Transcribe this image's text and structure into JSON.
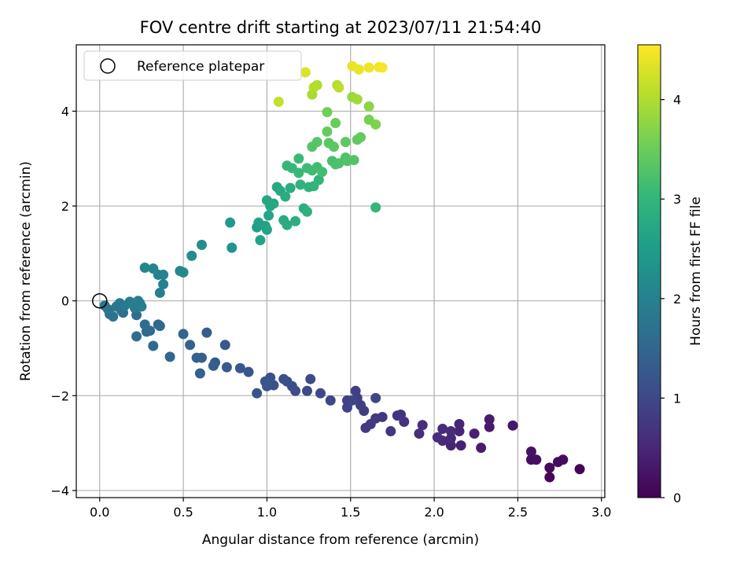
{
  "chart_data": {
    "type": "scatter",
    "title": "FOV centre drift starting at 2023/07/11 21:54:40",
    "xlabel": "Angular distance from reference (arcmin)",
    "ylabel": "Rotation from reference (arcmin)",
    "xlim": [
      -0.14,
      3.02
    ],
    "ylim": [
      -4.15,
      5.4
    ],
    "xticks": [
      0.0,
      0.5,
      1.0,
      1.5,
      2.0,
      2.5,
      3.0
    ],
    "xtick_labels": [
      "0.0",
      "0.5",
      "1.0",
      "1.5",
      "2.0",
      "2.5",
      "3.0"
    ],
    "yticks": [
      -4,
      -2,
      0,
      2,
      4
    ],
    "ytick_labels": [
      "−4",
      "−2",
      "0",
      "2",
      "4"
    ],
    "grid": true,
    "legend": {
      "placement": "upper-left",
      "entries": [
        "Reference platepar"
      ]
    },
    "reference_point": {
      "name": "Reference platepar",
      "x": 0.0,
      "y": 0.0
    },
    "colorbar": {
      "label": "Hours from first FF file",
      "colormap": "viridis",
      "range": [
        0,
        4.55
      ],
      "ticks": [
        0,
        1,
        2,
        3,
        4
      ],
      "tick_labels": [
        "0",
        "1",
        "2",
        "3",
        "4"
      ]
    },
    "points": [
      [
        2.87,
        -3.55,
        0.05
      ],
      [
        2.69,
        -3.72,
        0.08
      ],
      [
        2.69,
        -3.52,
        0.1
      ],
      [
        2.74,
        -3.4,
        0.12
      ],
      [
        2.77,
        -3.35,
        0.14
      ],
      [
        2.58,
        -3.35,
        0.18
      ],
      [
        2.61,
        -3.35,
        0.2
      ],
      [
        2.58,
        -3.18,
        0.22
      ],
      [
        2.47,
        -2.63,
        0.3
      ],
      [
        2.33,
        -2.66,
        0.33
      ],
      [
        2.33,
        -2.5,
        0.35
      ],
      [
        2.28,
        -3.1,
        0.38
      ],
      [
        2.24,
        -2.8,
        0.4
      ],
      [
        2.16,
        -3.05,
        0.42
      ],
      [
        2.1,
        -3.05,
        0.44
      ],
      [
        2.15,
        -2.75,
        0.46
      ],
      [
        2.15,
        -2.6,
        0.48
      ],
      [
        2.1,
        -2.9,
        0.5
      ],
      [
        2.05,
        -2.95,
        0.52
      ],
      [
        2.05,
        -2.7,
        0.54
      ],
      [
        2.1,
        -2.75,
        0.56
      ],
      [
        2.02,
        -2.88,
        0.58
      ],
      [
        1.93,
        -2.62,
        0.6
      ],
      [
        1.91,
        -2.8,
        0.62
      ],
      [
        1.82,
        -2.55,
        0.65
      ],
      [
        1.8,
        -2.4,
        0.68
      ],
      [
        1.78,
        -2.42,
        0.7
      ],
      [
        1.74,
        -2.75,
        0.72
      ],
      [
        1.69,
        -2.45,
        0.74
      ],
      [
        1.65,
        -2.48,
        0.76
      ],
      [
        1.62,
        -2.6,
        0.78
      ],
      [
        1.59,
        -2.68,
        0.8
      ],
      [
        1.58,
        -2.32,
        0.82
      ],
      [
        1.56,
        -2.2,
        0.84
      ],
      [
        1.54,
        -2.05,
        0.86
      ],
      [
        1.53,
        -1.9,
        0.88
      ],
      [
        1.48,
        -2.1,
        0.9
      ],
      [
        1.48,
        -2.25,
        0.92
      ],
      [
        1.51,
        -2.1,
        0.94
      ],
      [
        1.65,
        -2.05,
        0.96
      ],
      [
        1.38,
        -2.1,
        0.98
      ],
      [
        1.32,
        -1.95,
        1.0
      ],
      [
        1.24,
        -1.9,
        1.02
      ],
      [
        1.26,
        -1.65,
        1.04
      ],
      [
        1.17,
        -1.9,
        1.06
      ],
      [
        1.15,
        -1.8,
        1.08
      ],
      [
        1.12,
        -1.7,
        1.1
      ],
      [
        1.1,
        -1.65,
        1.12
      ],
      [
        1.04,
        -1.78,
        1.14
      ],
      [
        1.02,
        -1.62,
        1.16
      ],
      [
        1.0,
        -1.8,
        1.18
      ],
      [
        0.99,
        -1.7,
        1.2
      ],
      [
        0.94,
        -1.95,
        1.22
      ],
      [
        0.89,
        -1.5,
        1.24
      ],
      [
        0.84,
        -1.42,
        1.26
      ],
      [
        0.75,
        -0.93,
        1.28
      ],
      [
        0.76,
        -1.4,
        1.3
      ],
      [
        0.69,
        -1.3,
        1.32
      ],
      [
        0.68,
        -1.37,
        1.34
      ],
      [
        0.64,
        -0.67,
        1.36
      ],
      [
        0.61,
        -1.2,
        1.38
      ],
      [
        0.6,
        -1.53,
        1.4
      ],
      [
        0.58,
        -1.2,
        1.42
      ],
      [
        0.54,
        -0.93,
        1.44
      ],
      [
        0.5,
        -0.7,
        1.46
      ],
      [
        0.42,
        -1.18,
        1.48
      ],
      [
        0.35,
        -0.5,
        1.5
      ],
      [
        0.36,
        -0.53,
        1.52
      ],
      [
        0.32,
        -0.95,
        1.54
      ],
      [
        0.3,
        -0.63,
        1.56
      ],
      [
        0.28,
        -0.65,
        1.58
      ],
      [
        0.27,
        -0.5,
        1.6
      ],
      [
        0.22,
        -0.75,
        1.62
      ],
      [
        0.22,
        -0.3,
        1.64
      ],
      [
        0.19,
        -0.05,
        1.66
      ],
      [
        0.14,
        -0.25,
        1.68
      ],
      [
        0.13,
        -0.2,
        1.7
      ],
      [
        0.08,
        -0.33,
        1.72
      ],
      [
        0.06,
        -0.28,
        1.74
      ],
      [
        0.05,
        -0.18,
        1.76
      ],
      [
        0.03,
        -0.1,
        1.78
      ],
      [
        0.1,
        -0.12,
        1.8
      ],
      [
        0.12,
        -0.05,
        1.82
      ],
      [
        0.15,
        -0.1,
        1.84
      ],
      [
        0.18,
        -0.02,
        1.86
      ],
      [
        0.21,
        -0.15,
        1.88
      ],
      [
        0.24,
        -0.05,
        1.9
      ],
      [
        0.25,
        -0.12,
        1.92
      ],
      [
        0.23,
        0.0,
        1.94
      ],
      [
        0.2,
        -0.05,
        1.96
      ],
      [
        0.36,
        0.17,
        1.98
      ],
      [
        0.38,
        0.35,
        2.0
      ],
      [
        0.38,
        0.55,
        2.02
      ],
      [
        0.35,
        0.55,
        2.04
      ],
      [
        0.32,
        0.68,
        2.06
      ],
      [
        0.27,
        0.7,
        2.08
      ],
      [
        0.48,
        0.63,
        2.12
      ],
      [
        0.5,
        0.6,
        2.15
      ],
      [
        0.55,
        0.95,
        2.2
      ],
      [
        0.61,
        1.18,
        2.25
      ],
      [
        0.79,
        1.12,
        2.35
      ],
      [
        0.78,
        1.65,
        2.45
      ],
      [
        0.94,
        1.55,
        2.55
      ],
      [
        0.95,
        1.65,
        2.58
      ],
      [
        0.96,
        1.28,
        2.6
      ],
      [
        0.99,
        1.58,
        2.62
      ],
      [
        1.0,
        1.5,
        2.64
      ],
      [
        1.01,
        1.8,
        2.66
      ],
      [
        1.02,
        2.0,
        2.68
      ],
      [
        1.0,
        2.12,
        2.7
      ],
      [
        1.04,
        2.05,
        2.72
      ],
      [
        1.06,
        2.4,
        2.74
      ],
      [
        1.08,
        2.32,
        2.76
      ],
      [
        1.1,
        1.7,
        2.78
      ],
      [
        1.12,
        1.6,
        2.8
      ],
      [
        1.11,
        2.2,
        2.82
      ],
      [
        1.14,
        2.38,
        2.84
      ],
      [
        1.17,
        1.68,
        2.86
      ],
      [
        1.22,
        1.95,
        2.88
      ],
      [
        1.24,
        1.88,
        2.9
      ],
      [
        1.2,
        2.45,
        2.92
      ],
      [
        1.25,
        2.4,
        2.94
      ],
      [
        1.28,
        2.42,
        2.96
      ],
      [
        1.31,
        2.55,
        2.98
      ],
      [
        1.65,
        1.97,
        3.0
      ],
      [
        1.12,
        2.85,
        3.02
      ],
      [
        1.15,
        2.8,
        3.04
      ],
      [
        1.19,
        2.7,
        3.06
      ],
      [
        1.19,
        3.0,
        3.08
      ],
      [
        1.24,
        2.8,
        3.1
      ],
      [
        1.27,
        2.75,
        3.12
      ],
      [
        1.3,
        2.82,
        3.14
      ],
      [
        1.33,
        2.72,
        3.16
      ],
      [
        1.39,
        2.95,
        3.2
      ],
      [
        1.41,
        2.88,
        3.22
      ],
      [
        1.43,
        2.9,
        3.24
      ],
      [
        1.47,
        3.02,
        3.26
      ],
      [
        1.48,
        2.95,
        3.28
      ],
      [
        1.52,
        2.97,
        3.3
      ],
      [
        1.27,
        3.25,
        3.32
      ],
      [
        1.3,
        3.35,
        3.34
      ],
      [
        1.37,
        3.33,
        3.36
      ],
      [
        1.4,
        3.25,
        3.38
      ],
      [
        1.47,
        3.35,
        3.4
      ],
      [
        1.54,
        3.4,
        3.42
      ],
      [
        1.56,
        3.45,
        3.44
      ],
      [
        1.36,
        3.57,
        3.46
      ],
      [
        1.41,
        3.75,
        3.5
      ],
      [
        1.36,
        3.98,
        3.55
      ],
      [
        1.61,
        3.82,
        3.6
      ],
      [
        1.65,
        3.72,
        3.65
      ],
      [
        1.61,
        4.1,
        3.75
      ],
      [
        1.51,
        4.3,
        3.85
      ],
      [
        1.54,
        4.25,
        3.9
      ],
      [
        1.27,
        4.35,
        3.95
      ],
      [
        1.3,
        4.55,
        4.0
      ],
      [
        1.28,
        4.5,
        4.02
      ],
      [
        1.42,
        4.55,
        4.05
      ],
      [
        1.43,
        4.5,
        4.1
      ],
      [
        1.07,
        4.2,
        4.15
      ],
      [
        1.23,
        4.82,
        4.3
      ],
      [
        1.51,
        4.95,
        4.4
      ],
      [
        1.55,
        4.88,
        4.42
      ],
      [
        1.61,
        4.92,
        4.45
      ],
      [
        1.67,
        4.93,
        4.48
      ],
      [
        1.69,
        4.92,
        4.5
      ]
    ]
  },
  "colors": {
    "reference_marker_edge": "#000000",
    "grid": "#b0b0b0",
    "viridis": [
      "#440154",
      "#482878",
      "#3e4989",
      "#31688e",
      "#26828e",
      "#1f9e89",
      "#35b779",
      "#6ece58",
      "#b5de2b",
      "#fde725"
    ]
  }
}
